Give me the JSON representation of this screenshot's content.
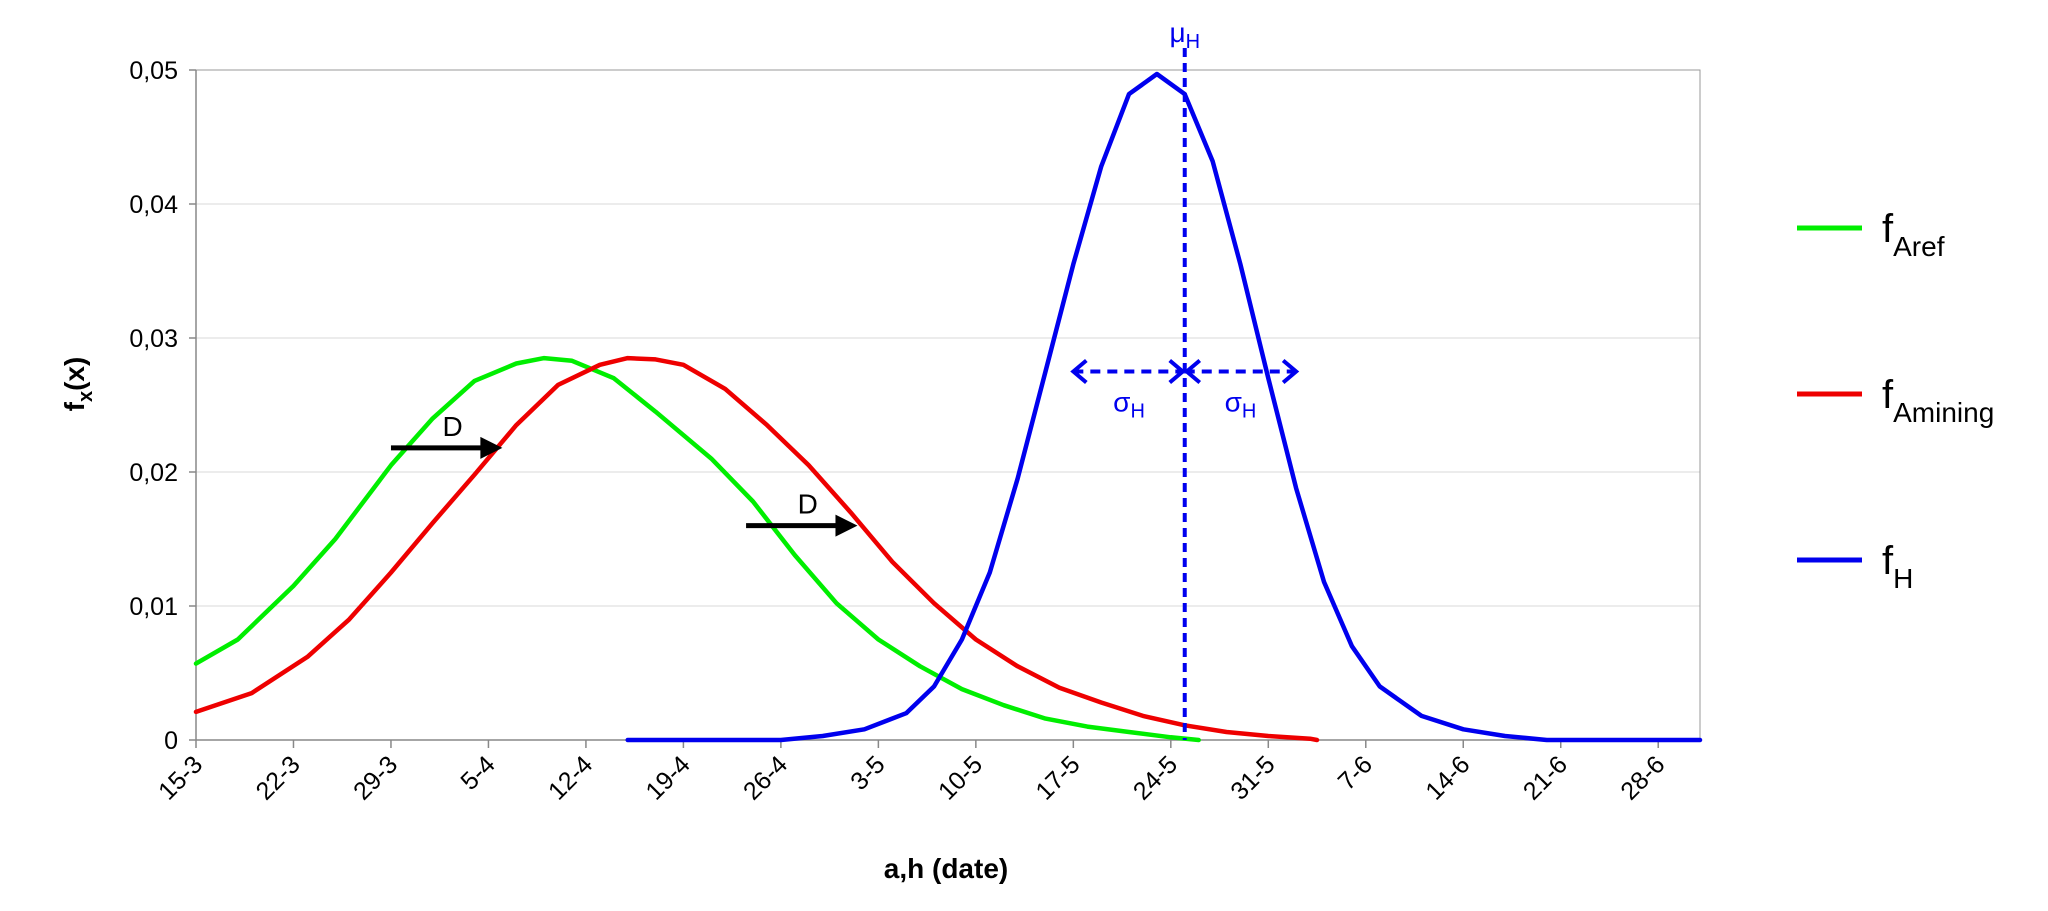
{
  "chart_data": {
    "type": "line",
    "xlabel": "a,h (date)",
    "ylabel": {
      "main": "f",
      "sub": "x",
      "suffix": "(x)"
    },
    "ylim": [
      0,
      0.05
    ],
    "y_ticks": [
      {
        "value": 0,
        "label": "0"
      },
      {
        "value": 0.01,
        "label": "0,01"
      },
      {
        "value": 0.02,
        "label": "0,02"
      },
      {
        "value": 0.03,
        "label": "0,03"
      },
      {
        "value": 0.04,
        "label": "0,04"
      },
      {
        "value": 0.05,
        "label": "0,05"
      }
    ],
    "x_range_days_from_first_tick": [
      0,
      108
    ],
    "x_ticks": [
      "15-3",
      "22-3",
      "29-3",
      "5-4",
      "12-4",
      "19-4",
      "26-4",
      "3-5",
      "10-5",
      "17-5",
      "24-5",
      "31-5",
      "7-6",
      "14-6",
      "21-6",
      "28-6"
    ],
    "grid": true,
    "legend_position": "right",
    "series": [
      {
        "name": "f",
        "name_sub": "Aref",
        "color": "#00ee00",
        "points": [
          [
            0,
            0.0057
          ],
          [
            3,
            0.0075
          ],
          [
            7,
            0.0115
          ],
          [
            10,
            0.015
          ],
          [
            14,
            0.0205
          ],
          [
            17,
            0.024
          ],
          [
            20,
            0.0268
          ],
          [
            23,
            0.0281
          ],
          [
            25,
            0.0285
          ],
          [
            27,
            0.0283
          ],
          [
            30,
            0.027
          ],
          [
            33,
            0.0245
          ],
          [
            37,
            0.021
          ],
          [
            40,
            0.0178
          ],
          [
            43,
            0.0138
          ],
          [
            46,
            0.0102
          ],
          [
            49,
            0.0075
          ],
          [
            52,
            0.0055
          ],
          [
            55,
            0.0038
          ],
          [
            58,
            0.0026
          ],
          [
            61,
            0.0016
          ],
          [
            64,
            0.001
          ],
          [
            67,
            0.0006
          ],
          [
            70,
            0.0002
          ],
          [
            72,
            0.0
          ]
        ]
      },
      {
        "name": "f",
        "name_sub": "Amining",
        "color": "#ee0000",
        "points": [
          [
            0,
            0.0021
          ],
          [
            4,
            0.0035
          ],
          [
            8,
            0.0062
          ],
          [
            11,
            0.009
          ],
          [
            14,
            0.0125
          ],
          [
            17,
            0.0162
          ],
          [
            20,
            0.0198
          ],
          [
            23,
            0.0235
          ],
          [
            26,
            0.0265
          ],
          [
            29,
            0.028
          ],
          [
            31,
            0.0285
          ],
          [
            33,
            0.0284
          ],
          [
            35,
            0.028
          ],
          [
            38,
            0.0262
          ],
          [
            41,
            0.0235
          ],
          [
            44,
            0.0205
          ],
          [
            47,
            0.017
          ],
          [
            50,
            0.0133
          ],
          [
            53,
            0.0102
          ],
          [
            56,
            0.0075
          ],
          [
            59,
            0.0055
          ],
          [
            62,
            0.0039
          ],
          [
            65,
            0.0028
          ],
          [
            68,
            0.0018
          ],
          [
            71,
            0.0011
          ],
          [
            74,
            0.0006
          ],
          [
            77,
            0.0003
          ],
          [
            80,
            0.0001
          ],
          [
            80.5,
            0.0
          ]
        ]
      },
      {
        "name": "f",
        "name_sub": "H",
        "color": "#0000ee",
        "points": [
          [
            31,
            0.0
          ],
          [
            42,
            0.0
          ],
          [
            45,
            0.0003
          ],
          [
            48,
            0.0008
          ],
          [
            51,
            0.002
          ],
          [
            53,
            0.004
          ],
          [
            55,
            0.0075
          ],
          [
            57,
            0.0125
          ],
          [
            59,
            0.0195
          ],
          [
            61,
            0.0275
          ],
          [
            63,
            0.0355
          ],
          [
            65,
            0.0428
          ],
          [
            67,
            0.0482
          ],
          [
            69,
            0.0497
          ],
          [
            71,
            0.0482
          ],
          [
            73,
            0.0432
          ],
          [
            75,
            0.0355
          ],
          [
            77,
            0.027
          ],
          [
            79,
            0.0188
          ],
          [
            81,
            0.0118
          ],
          [
            83,
            0.007
          ],
          [
            85,
            0.004
          ],
          [
            88,
            0.0018
          ],
          [
            91,
            0.0008
          ],
          [
            94,
            0.0003
          ],
          [
            97,
            0.0
          ],
          [
            108,
            0.0
          ]
        ]
      }
    ],
    "annotations": {
      "mu": {
        "label": "μ",
        "sub": "H",
        "x": 71
      },
      "sigma": {
        "label": "σ",
        "sub": "H",
        "sigma_days": 8,
        "y": 0.0275,
        "color": "#0000ee"
      },
      "shift_arrows": [
        {
          "label": "D",
          "x_from": 14,
          "x_to": 22,
          "y": 0.0218
        },
        {
          "label": "D",
          "x_from": 39.5,
          "x_to": 47.5,
          "y": 0.016
        }
      ]
    }
  }
}
